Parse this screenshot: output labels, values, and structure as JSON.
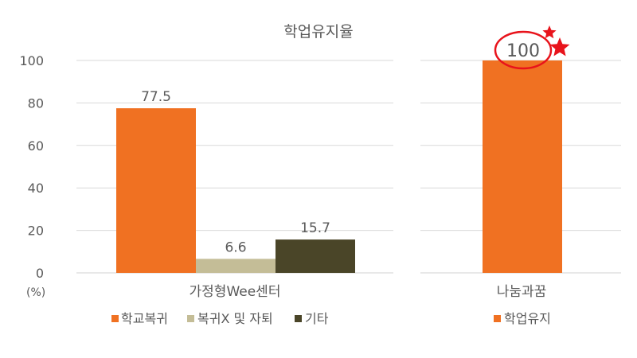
{
  "chart_data": {
    "type": "bar",
    "title": "학업유지율",
    "unit_label": "(%)",
    "ylim": [
      0,
      100
    ],
    "yticks": [
      0,
      20,
      40,
      60,
      80,
      100
    ],
    "grid": true,
    "colors": {
      "orange": "#F07122",
      "beige": "#C4BD97",
      "dark": "#4A4528",
      "gridline": "#D9D9D9",
      "axis_text": "#595959",
      "highlight": "#E8131B"
    },
    "groups": [
      {
        "category": "가정형Wee센터",
        "bars": [
          {
            "name": "학교복귀",
            "value": 77.5,
            "label": "77.5",
            "color": "#F07122"
          },
          {
            "name": "복귀X 및 자퇴",
            "value": 6.6,
            "label": "6.6",
            "color": "#C4BD97"
          },
          {
            "name": "기타",
            "value": 15.7,
            "label": "15.7",
            "color": "#4A4528"
          }
        ],
        "legend": [
          {
            "name": "학교복귀",
            "color": "#F07122"
          },
          {
            "name": "복귀X 및 자퇴",
            "color": "#C4BD97"
          },
          {
            "name": "기타",
            "color": "#4A4528"
          }
        ]
      },
      {
        "category": "나눔과꿈",
        "bars": [
          {
            "name": "학업유지",
            "value": 100,
            "label": "100",
            "color": "#F07122",
            "highlighted": true
          }
        ],
        "legend": [
          {
            "name": "학업유지",
            "color": "#F07122"
          }
        ]
      }
    ],
    "legend_position": "bottom"
  }
}
